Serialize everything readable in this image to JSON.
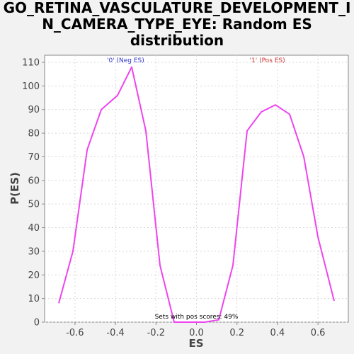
{
  "chart_data": {
    "type": "line",
    "title": [
      "GO_RETINA_VASCULATURE_DEVELOPMENT_I",
      "N_CAMERA_TYPE_EYE: Random ES",
      "distribution"
    ],
    "xlabel": "ES",
    "ylabel": "P(ES)",
    "xlim": [
      -0.75,
      0.75
    ],
    "ylim": [
      0,
      113
    ],
    "xticks": [
      -0.6,
      -0.4,
      -0.2,
      0.0,
      0.2,
      0.4,
      0.6
    ],
    "xtick_labels": [
      "-0.6",
      "-0.4",
      "-0.2",
      "0.0",
      "0.2",
      "0.4",
      "0.6"
    ],
    "yticks": [
      0,
      10,
      20,
      30,
      40,
      50,
      60,
      70,
      80,
      90,
      100,
      110
    ],
    "ytick_labels": [
      "0",
      "10",
      "20",
      "30",
      "40",
      "50",
      "60",
      "70",
      "80",
      "90",
      "100",
      "110"
    ],
    "grid": true,
    "series": [
      {
        "color": "#ee44ee",
        "x": [
          -0.68,
          -0.61,
          -0.54,
          -0.47,
          -0.39,
          -0.32,
          -0.25,
          -0.18,
          -0.11,
          -0.04,
          0.04,
          0.11,
          0.18,
          0.25,
          0.32,
          0.39,
          0.46,
          0.53,
          0.6,
          0.68
        ],
        "y": [
          8,
          30,
          73,
          90,
          96,
          108,
          81,
          24,
          0,
          0,
          0,
          1,
          24,
          81,
          89,
          92,
          88,
          70,
          36,
          9
        ]
      }
    ],
    "annotations": [
      {
        "text": "'0' (Neg ES)",
        "x": -0.35,
        "y": 110,
        "color": "#3333cc"
      },
      {
        "text": "'1' (Pos ES)",
        "x": 0.35,
        "y": 110,
        "color": "#cc3333"
      },
      {
        "text": "Sets with pos scores: 49%",
        "x": 0.0,
        "y": 1.5,
        "color": "#000000"
      }
    ]
  }
}
